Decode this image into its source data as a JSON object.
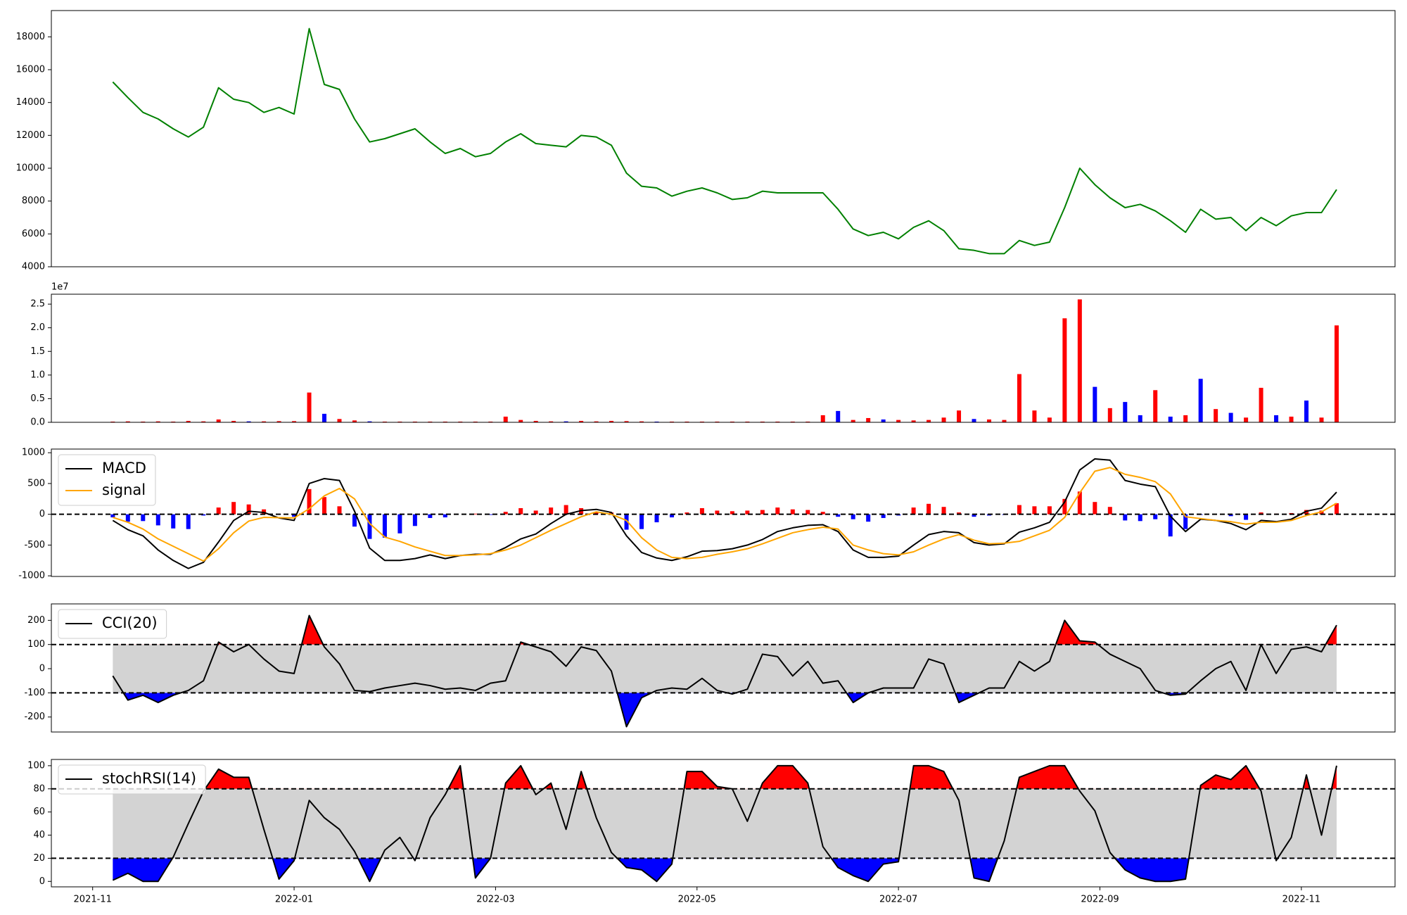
{
  "chart_data": [
    {
      "type": "line",
      "x": [
        0.2,
        0.35,
        0.5,
        0.65,
        0.8,
        0.95,
        1.1,
        1.25,
        1.4,
        1.55,
        1.7,
        1.85,
        2,
        2.15,
        2.3,
        2.45,
        2.6,
        2.75,
        2.9,
        3.05,
        3.2,
        3.35,
        3.5,
        3.65,
        3.8,
        3.95,
        4.1,
        4.25,
        4.4,
        4.55,
        4.7,
        4.85,
        5,
        5.15,
        5.3,
        5.45,
        5.6,
        5.75,
        5.9,
        6.05,
        6.2,
        6.35,
        6.5,
        6.65,
        6.8,
        6.95,
        7.1,
        7.25,
        7.4,
        7.55,
        7.7,
        7.85,
        8,
        8.15,
        8.3,
        8.45,
        8.6,
        8.75,
        8.9,
        9.05,
        9.2,
        9.35,
        9.5,
        9.65,
        9.8,
        9.95,
        10.1,
        10.25,
        10.4,
        10.55,
        10.7,
        10.85,
        11,
        11.15,
        11.3,
        11.45,
        11.6,
        11.75,
        11.9,
        12.05,
        12.2,
        12.35
      ],
      "xlim": [
        -0.41,
        12.93
      ],
      "values": [
        15250,
        14300,
        13400,
        13000,
        12400,
        11900,
        12500,
        14900,
        14200,
        14000,
        13400,
        13700,
        13300,
        18500,
        15100,
        14800,
        13000,
        11600,
        11800,
        12100,
        12400,
        11600,
        10900,
        11200,
        10700,
        10900,
        11600,
        12100,
        11500,
        11400,
        11300,
        12000,
        11900,
        11400,
        9700,
        8900,
        8800,
        8300,
        8600,
        8800,
        8500,
        8100,
        8200,
        8600,
        8500,
        8500,
        8500,
        8500,
        7500,
        6300,
        5900,
        6100,
        5700,
        6400,
        6800,
        6200,
        5100,
        5000,
        4800,
        4800,
        5600,
        5300,
        5500,
        7600,
        10000,
        9000,
        8200,
        7600,
        7800,
        7400,
        6800,
        6100,
        7500,
        6900,
        7000,
        6200,
        7000,
        6500,
        7100,
        7300,
        7300,
        8700
      ],
      "color": "#008000",
      "ylim": [
        4000,
        19600
      ],
      "yticks": [
        4000,
        6000,
        8000,
        10000,
        12000,
        14000,
        16000,
        18000
      ]
    },
    {
      "type": "bar",
      "x": [
        0.2,
        0.35,
        0.5,
        0.65,
        0.8,
        0.95,
        1.1,
        1.25,
        1.4,
        1.55,
        1.7,
        1.85,
        2,
        2.15,
        2.3,
        2.45,
        2.6,
        2.75,
        2.9,
        3.05,
        3.2,
        3.35,
        3.5,
        3.65,
        3.8,
        3.95,
        4.1,
        4.25,
        4.4,
        4.55,
        4.7,
        4.85,
        5,
        5.15,
        5.3,
        5.45,
        5.6,
        5.75,
        5.9,
        6.05,
        6.2,
        6.35,
        6.5,
        6.65,
        6.8,
        6.95,
        7.1,
        7.25,
        7.4,
        7.55,
        7.7,
        7.85,
        8,
        8.15,
        8.3,
        8.45,
        8.6,
        8.75,
        8.9,
        9.05,
        9.2,
        9.35,
        9.5,
        9.65,
        9.8,
        9.95,
        10.1,
        10.25,
        10.4,
        10.55,
        10.7,
        10.85,
        11,
        11.15,
        11.3,
        11.45,
        11.6,
        11.75,
        11.9,
        12.05,
        12.2,
        12.35
      ],
      "xlim": [
        -0.41,
        12.93
      ],
      "values": [
        150000,
        200000,
        150000,
        200000,
        150000,
        300000,
        200000,
        600000,
        300000,
        200000,
        200000,
        250000,
        250000,
        6300000,
        1800000,
        700000,
        400000,
        200000,
        150000,
        150000,
        150000,
        150000,
        150000,
        150000,
        150000,
        150000,
        1200000,
        500000,
        300000,
        200000,
        200000,
        300000,
        200000,
        300000,
        250000,
        200000,
        150000,
        150000,
        150000,
        150000,
        150000,
        150000,
        150000,
        150000,
        150000,
        150000,
        150000,
        1500000,
        2400000,
        500000,
        900000,
        600000,
        500000,
        400000,
        500000,
        1000000,
        2500000,
        700000,
        600000,
        500000,
        10200000,
        2500000,
        1000000,
        22000000,
        26000000,
        7500000,
        3000000,
        4300000,
        1500000,
        6800000,
        1200000,
        1500000,
        9200000,
        2800000,
        2000000,
        1000000,
        7300000,
        1500000,
        1200000,
        4600000,
        1000000,
        20500000
      ],
      "colors": [
        "#ff0000",
        "#ff0000",
        "#ff0000",
        "#ff0000",
        "#ff0000",
        "#ff0000",
        "#ff0000",
        "#ff0000",
        "#ff0000",
        "#0000ff",
        "#ff0000",
        "#ff0000",
        "#ff0000",
        "#ff0000",
        "#0000ff",
        "#ff0000",
        "#ff0000",
        "#0000ff",
        "#ff0000",
        "#ff0000",
        "#ff0000",
        "#ff0000",
        "#ff0000",
        "#ff0000",
        "#ff0000",
        "#ff0000",
        "#ff0000",
        "#ff0000",
        "#ff0000",
        "#ff0000",
        "#0000ff",
        "#ff0000",
        "#ff0000",
        "#ff0000",
        "#ff0000",
        "#ff0000",
        "#0000ff",
        "#ff0000",
        "#ff0000",
        "#ff0000",
        "#ff0000",
        "#ff0000",
        "#ff0000",
        "#ff0000",
        "#ff0000",
        "#ff0000",
        "#ff0000",
        "#ff0000",
        "#0000ff",
        "#ff0000",
        "#ff0000",
        "#0000ff",
        "#ff0000",
        "#ff0000",
        "#ff0000",
        "#ff0000",
        "#ff0000",
        "#0000ff",
        "#ff0000",
        "#ff0000",
        "#ff0000",
        "#ff0000",
        "#ff0000",
        "#ff0000",
        "#ff0000",
        "#0000ff",
        "#ff0000",
        "#0000ff",
        "#0000ff",
        "#ff0000",
        "#0000ff",
        "#ff0000",
        "#0000ff",
        "#ff0000",
        "#0000ff",
        "#ff0000",
        "#ff0000",
        "#0000ff",
        "#ff0000",
        "#0000ff",
        "#ff0000",
        "#ff0000"
      ],
      "ylim": [
        0,
        27100000
      ],
      "yticks": [
        {
          "value": 0,
          "label": "0.0"
        },
        {
          "value": 5000000,
          "label": "0.5"
        },
        {
          "value": 10000000,
          "label": "1.0"
        },
        {
          "value": 15000000,
          "label": "1.5"
        },
        {
          "value": 20000000,
          "label": "2.0"
        },
        {
          "value": 25000000,
          "label": "2.5"
        }
      ],
      "offset_label": "1e7"
    },
    {
      "type": "macd",
      "x": [
        0.2,
        0.35,
        0.5,
        0.65,
        0.8,
        0.95,
        1.1,
        1.25,
        1.4,
        1.55,
        1.7,
        1.85,
        2,
        2.15,
        2.3,
        2.45,
        2.6,
        2.75,
        2.9,
        3.05,
        3.2,
        3.35,
        3.5,
        3.65,
        3.8,
        3.95,
        4.1,
        4.25,
        4.4,
        4.55,
        4.7,
        4.85,
        5,
        5.15,
        5.3,
        5.45,
        5.6,
        5.75,
        5.9,
        6.05,
        6.2,
        6.35,
        6.5,
        6.65,
        6.8,
        6.95,
        7.1,
        7.25,
        7.4,
        7.55,
        7.7,
        7.85,
        8,
        8.15,
        8.3,
        8.45,
        8.6,
        8.75,
        8.9,
        9.05,
        9.2,
        9.35,
        9.5,
        9.65,
        9.8,
        9.95,
        10.1,
        10.25,
        10.4,
        10.55,
        10.7,
        10.85,
        11,
        11.15,
        11.3,
        11.45,
        11.6,
        11.75,
        11.9,
        12.05,
        12.2,
        12.35
      ],
      "xlim": [
        -0.41,
        12.93
      ],
      "ylim": [
        -1010,
        1060
      ],
      "yticks": [
        -1000,
        -500,
        0,
        500,
        1000
      ],
      "zero_line": true,
      "legend": "upper left",
      "series": [
        {
          "name": "MACD",
          "color": "#000000",
          "values": [
            -100,
            -250,
            -350,
            -580,
            -750,
            -880,
            -780,
            -450,
            -100,
            50,
            30,
            -60,
            -100,
            500,
            580,
            550,
            50,
            -550,
            -750,
            -750,
            -720,
            -660,
            -720,
            -670,
            -650,
            -650,
            -540,
            -400,
            -320,
            -150,
            0,
            60,
            80,
            30,
            -350,
            -620,
            -710,
            -750,
            -690,
            -600,
            -590,
            -560,
            -500,
            -410,
            -280,
            -220,
            -180,
            -170,
            -280,
            -580,
            -700,
            -700,
            -680,
            -500,
            -330,
            -280,
            -300,
            -460,
            -500,
            -480,
            -290,
            -220,
            -130,
            200,
            720,
            900,
            880,
            550,
            490,
            450,
            -30,
            -280,
            -80,
            -100,
            -150,
            -250,
            -100,
            -120,
            -80,
            50,
            100,
            360
          ]
        },
        {
          "name": "signal",
          "color": "#ffa500",
          "values": [
            -50,
            -130,
            -240,
            -400,
            -520,
            -640,
            -760,
            -560,
            -300,
            -110,
            -50,
            -55,
            -60,
            90,
            300,
            420,
            250,
            -150,
            -370,
            -440,
            -530,
            -600,
            -670,
            -670,
            -660,
            -640,
            -580,
            -500,
            -380,
            -260,
            -150,
            -40,
            40,
            0,
            -100,
            -380,
            -580,
            -700,
            -720,
            -700,
            -650,
            -610,
            -560,
            -480,
            -390,
            -300,
            -250,
            -210,
            -240,
            -500,
            -580,
            -640,
            -660,
            -610,
            -500,
            -400,
            -330,
            -420,
            -480,
            -470,
            -440,
            -350,
            -260,
            -50,
            350,
            700,
            760,
            650,
            600,
            530,
            330,
            -40,
            -70,
            -100,
            -120,
            -160,
            -130,
            -130,
            -100,
            -20,
            40,
            180
          ]
        }
      ],
      "histogram": {
        "values": [
          -50,
          -120,
          -110,
          -180,
          -230,
          -240,
          -20,
          110,
          200,
          160,
          80,
          -5,
          -40,
          410,
          280,
          130,
          -200,
          -400,
          -380,
          -310,
          -190,
          -60,
          -50,
          0,
          10,
          -10,
          40,
          100,
          60,
          110,
          150,
          100,
          40,
          30,
          -250,
          -240,
          -130,
          -50,
          30,
          100,
          60,
          50,
          60,
          70,
          110,
          80,
          70,
          40,
          -40,
          -80,
          -120,
          -60,
          -20,
          110,
          170,
          120,
          30,
          -40,
          -20,
          -10,
          150,
          130,
          130,
          250,
          370,
          200,
          120,
          -100,
          -110,
          -80,
          -360,
          -240,
          -10,
          0,
          -30,
          -90,
          30,
          10,
          20,
          70,
          60,
          180
        ],
        "pos_color": "#ff0000",
        "neg_color": "#0000ff"
      }
    },
    {
      "type": "band",
      "x": [
        0.2,
        0.35,
        0.5,
        0.65,
        0.8,
        0.95,
        1.1,
        1.25,
        1.4,
        1.55,
        1.7,
        1.85,
        2,
        2.15,
        2.3,
        2.45,
        2.6,
        2.75,
        2.9,
        3.05,
        3.2,
        3.35,
        3.5,
        3.65,
        3.8,
        3.95,
        4.1,
        4.25,
        4.4,
        4.55,
        4.7,
        4.85,
        5,
        5.15,
        5.3,
        5.45,
        5.6,
        5.75,
        5.9,
        6.05,
        6.2,
        6.35,
        6.5,
        6.65,
        6.8,
        6.95,
        7.1,
        7.25,
        7.4,
        7.55,
        7.7,
        7.85,
        8,
        8.15,
        8.3,
        8.45,
        8.6,
        8.75,
        8.9,
        9.05,
        9.2,
        9.35,
        9.5,
        9.65,
        9.8,
        9.95,
        10.1,
        10.25,
        10.4,
        10.55,
        10.7,
        10.85,
        11,
        11.15,
        11.3,
        11.45,
        11.6,
        11.75,
        11.9,
        12.05,
        12.2,
        12.35
      ],
      "xlim": [
        -0.41,
        12.93
      ],
      "ylim": [
        -262,
        268
      ],
      "yticks": [
        -200,
        -100,
        0,
        100,
        200
      ],
      "thresholds": [
        -100,
        100
      ],
      "band_color": "#d3d3d3",
      "upper_color": "#ff0000",
      "lower_color": "#0000ff",
      "legend": "upper left",
      "series": [
        {
          "name": "CCI(20)",
          "color": "#000000",
          "values": [
            -30,
            -130,
            -110,
            -140,
            -110,
            -90,
            -50,
            110,
            70,
            100,
            40,
            -10,
            -20,
            220,
            90,
            20,
            -90,
            -95,
            -80,
            -70,
            -60,
            -70,
            -85,
            -80,
            -90,
            -60,
            -50,
            110,
            90,
            70,
            10,
            90,
            75,
            -10,
            -240,
            -120,
            -90,
            -80,
            -85,
            -40,
            -90,
            -105,
            -85,
            60,
            50,
            -30,
            30,
            -60,
            -50,
            -140,
            -100,
            -80,
            -80,
            -80,
            40,
            20,
            -140,
            -110,
            -80,
            -80,
            30,
            -10,
            30,
            200,
            115,
            110,
            60,
            30,
            0,
            -90,
            -110,
            -105,
            -50,
            0,
            30,
            -90,
            100,
            -20,
            80,
            90,
            70,
            180
          ]
        }
      ]
    },
    {
      "type": "band",
      "x": [
        0.2,
        0.35,
        0.5,
        0.65,
        0.8,
        0.95,
        1.1,
        1.25,
        1.4,
        1.55,
        1.7,
        1.85,
        2,
        2.15,
        2.3,
        2.45,
        2.6,
        2.75,
        2.9,
        3.05,
        3.2,
        3.35,
        3.5,
        3.65,
        3.8,
        3.95,
        4.1,
        4.25,
        4.4,
        4.55,
        4.7,
        4.85,
        5,
        5.15,
        5.3,
        5.45,
        5.6,
        5.75,
        5.9,
        6.05,
        6.2,
        6.35,
        6.5,
        6.65,
        6.8,
        6.95,
        7.1,
        7.25,
        7.4,
        7.55,
        7.7,
        7.85,
        8,
        8.15,
        8.3,
        8.45,
        8.6,
        8.75,
        8.9,
        9.05,
        9.2,
        9.35,
        9.5,
        9.65,
        9.8,
        9.95,
        10.1,
        10.25,
        10.4,
        10.55,
        10.7,
        10.85,
        11,
        11.15,
        11.3,
        11.45,
        11.6,
        11.75,
        11.9,
        12.05,
        12.2,
        12.35
      ],
      "xlim": [
        -0.41,
        12.93
      ],
      "ylim": [
        -4.7,
        105.4
      ],
      "yticks": [
        0,
        20,
        40,
        60,
        80,
        100
      ],
      "xticks": [
        {
          "value": 0,
          "label": "2021-11"
        },
        {
          "value": 2,
          "label": "2022-01"
        },
        {
          "value": 4,
          "label": "2022-03"
        },
        {
          "value": 6,
          "label": "2022-05"
        },
        {
          "value": 8,
          "label": "2022-07"
        },
        {
          "value": 10,
          "label": "2022-09"
        },
        {
          "value": 12,
          "label": "2022-11"
        }
      ],
      "thresholds": [
        20,
        80
      ],
      "band_color": "#d3d3d3",
      "upper_color": "#ff0000",
      "lower_color": "#0000ff",
      "legend": "upper left",
      "series": [
        {
          "name": "stochRSI(14)",
          "color": "#000000",
          "values": [
            1,
            7,
            0,
            0,
            21,
            50,
            78,
            97,
            90,
            90,
            45,
            2,
            18,
            70,
            55,
            45,
            26,
            0,
            27,
            38,
            18,
            55,
            75,
            100,
            3,
            20,
            85,
            100,
            75,
            85,
            45,
            95,
            55,
            25,
            12,
            10,
            0,
            15,
            95,
            95,
            82,
            80,
            52,
            85,
            100,
            100,
            85,
            30,
            12,
            5,
            0,
            15,
            17,
            100,
            100,
            95,
            70,
            3,
            0,
            35,
            90,
            95,
            100,
            100,
            78,
            61,
            25,
            10,
            3,
            0,
            0,
            2,
            83,
            92,
            88,
            100,
            78,
            18,
            38,
            92,
            40,
            100
          ]
        }
      ]
    }
  ]
}
